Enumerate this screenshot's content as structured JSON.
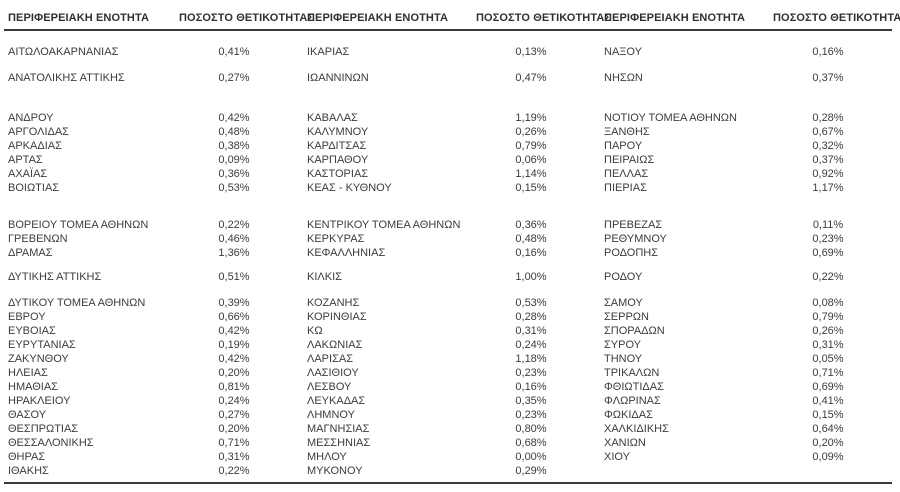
{
  "table": {
    "header": {
      "region": "ΠΕΡΙΦΕΡΕΙΑΚΗ ΕΝΟΤΗΤΑ",
      "rate": "ΠΟΣΟΣΤΟ ΘΕΤΙΚΟΤΗΤΑΣ"
    },
    "rows": [
      {
        "cells": [
          [
            "ΑΙΤΩΛΟΑΚΑΡΝΑΝΙΑΣ",
            "0,41%"
          ],
          [
            "ΙΚΑΡΙΑΣ",
            "0,13%"
          ],
          [
            "ΝΑΞΟΥ",
            "0,16%"
          ]
        ],
        "gap_after": 12
      },
      {
        "cells": [
          [
            "ΑΝΑΤΟΛΙΚΗΣ ΑΤΤΙΚΗΣ",
            "0,27%"
          ],
          [
            "ΙΩΑΝΝΙΝΩΝ",
            "0,47%"
          ],
          [
            "ΝΗΣΩΝ",
            "0,37%"
          ]
        ],
        "gap_after": 26
      },
      {
        "cells": [
          [
            "ΑΝΔΡΟΥ",
            "0,42%"
          ],
          [
            "ΚΑΒΑΛΑΣ",
            "1,19%"
          ],
          [
            "ΝΟΤΙΟΥ ΤΟΜΕΑ ΑΘΗΝΩΝ",
            "0,28%"
          ]
        ]
      },
      {
        "cells": [
          [
            "ΑΡΓΟΛΙΔΑΣ",
            "0,48%"
          ],
          [
            "ΚΑΛΥΜΝΟΥ",
            "0,26%"
          ],
          [
            "ΞΑΝΘΗΣ",
            "0,67%"
          ]
        ]
      },
      {
        "cells": [
          [
            "ΑΡΚΑΔΙΑΣ",
            "0,38%"
          ],
          [
            "ΚΑΡΔΙΤΣΑΣ",
            "0,79%"
          ],
          [
            "ΠΑΡΟΥ",
            "0,32%"
          ]
        ]
      },
      {
        "cells": [
          [
            "ΑΡΤΑΣ",
            "0,09%"
          ],
          [
            "ΚΑΡΠΑΘΟΥ",
            "0,06%"
          ],
          [
            "ΠΕΙΡΑΙΩΣ",
            "0,37%"
          ]
        ]
      },
      {
        "cells": [
          [
            "ΑΧΑΪΑΣ",
            "0,36%"
          ],
          [
            "ΚΑΣΤΟΡΙΑΣ",
            "1,14%"
          ],
          [
            "ΠΕΛΛΑΣ",
            "0,92%"
          ]
        ]
      },
      {
        "cells": [
          [
            "ΒΟΙΩΤΙΑΣ",
            "0,53%"
          ],
          [
            "ΚΕΑΣ - ΚΥΘΝΟΥ",
            "0,15%"
          ],
          [
            "ΠΙΕΡΙΑΣ",
            "1,17%"
          ]
        ],
        "gap_after": 23
      },
      {
        "cells": [
          [
            "ΒΟΡΕΙΟΥ ΤΟΜΕΑ ΑΘΗΝΩΝ",
            "0,22%"
          ],
          [
            "ΚΕΝΤΡΙΚΟΥ ΤΟΜΕΑ ΑΘΗΝΩΝ",
            "0,36%"
          ],
          [
            "ΠΡΕΒΕΖΑΣ",
            "0,11%"
          ]
        ]
      },
      {
        "cells": [
          [
            "ΓΡΕΒΕΝΩΝ",
            "0,46%"
          ],
          [
            "ΚΕΡΚΥΡΑΣ",
            "0,48%"
          ],
          [
            "ΡΕΘΥΜΝΟΥ",
            "0,23%"
          ]
        ]
      },
      {
        "cells": [
          [
            "ΔΡΑΜΑΣ",
            "1,36%"
          ],
          [
            "ΚΕΦΑΛΛΗΝΙΑΣ",
            "0,16%"
          ],
          [
            "ΡΟΔΟΠΗΣ",
            "0,69%"
          ]
        ],
        "gap_after": 10
      },
      {
        "cells": [
          [
            "ΔΥΤΙΚΗΣ ΑΤΤΙΚΗΣ",
            "0,51%"
          ],
          [
            "ΚΙΛΚΙΣ",
            "1,00%"
          ],
          [
            "ΡΟΔΟΥ",
            "0,22%"
          ]
        ],
        "gap_after": 12
      },
      {
        "cells": [
          [
            "ΔΥΤΙΚΟΥ ΤΟΜΕΑ ΑΘΗΝΩΝ",
            "0,39%"
          ],
          [
            "ΚΟΖΑΝΗΣ",
            "0,53%"
          ],
          [
            "ΣΑΜΟΥ",
            "0,08%"
          ]
        ]
      },
      {
        "cells": [
          [
            "ΕΒΡΟΥ",
            "0,66%"
          ],
          [
            "ΚΟΡΙΝΘΙΑΣ",
            "0,28%"
          ],
          [
            "ΣΕΡΡΩΝ",
            "0,79%"
          ]
        ]
      },
      {
        "cells": [
          [
            "ΕΥΒΟΙΑΣ",
            "0,42%"
          ],
          [
            "ΚΩ",
            "0,31%"
          ],
          [
            "ΣΠΟΡΑΔΩΝ",
            "0,26%"
          ]
        ]
      },
      {
        "cells": [
          [
            "ΕΥΡΥΤΑΝΙΑΣ",
            "0,19%"
          ],
          [
            "ΛΑΚΩΝΙΑΣ",
            "0,24%"
          ],
          [
            "ΣΥΡΟΥ",
            "0,31%"
          ]
        ]
      },
      {
        "cells": [
          [
            "ΖΑΚΥΝΘΟΥ",
            "0,42%"
          ],
          [
            "ΛΑΡΙΣΑΣ",
            "1,18%"
          ],
          [
            "ΤΗΝΟΥ",
            "0,05%"
          ]
        ]
      },
      {
        "cells": [
          [
            "ΗΛΕΙΑΣ",
            "0,20%"
          ],
          [
            "ΛΑΣΙΘΙΟΥ",
            "0,23%"
          ],
          [
            "ΤΡΙΚΑΛΩΝ",
            "0,71%"
          ]
        ]
      },
      {
        "cells": [
          [
            "ΗΜΑΘΙΑΣ",
            "0,81%"
          ],
          [
            "ΛΕΣΒΟΥ",
            "0,16%"
          ],
          [
            "ΦΘΙΩΤΙΔΑΣ",
            "0,69%"
          ]
        ]
      },
      {
        "cells": [
          [
            "ΗΡΑΚΛΕΙΟΥ",
            "0,24%"
          ],
          [
            "ΛΕΥΚΑΔΑΣ",
            "0,35%"
          ],
          [
            "ΦΛΩΡΙΝΑΣ",
            "0,41%"
          ]
        ]
      },
      {
        "cells": [
          [
            "ΘΑΣΟΥ",
            "0,27%"
          ],
          [
            "ΛΗΜΝΟΥ",
            "0,23%"
          ],
          [
            "ΦΩΚΙΔΑΣ",
            "0,15%"
          ]
        ]
      },
      {
        "cells": [
          [
            "ΘΕΣΠΡΩΤΙΑΣ",
            "0,20%"
          ],
          [
            "ΜΑΓΝΗΣΙΑΣ",
            "0,80%"
          ],
          [
            "ΧΑΛΚΙΔΙΚΗΣ",
            "0,64%"
          ]
        ]
      },
      {
        "cells": [
          [
            "ΘΕΣΣΑΛΟΝΙΚΗΣ",
            "0,71%"
          ],
          [
            "ΜΕΣΣΗΝΙΑΣ",
            "0,68%"
          ],
          [
            "ΧΑΝΙΩΝ",
            "0,20%"
          ]
        ]
      },
      {
        "cells": [
          [
            "ΘΗΡΑΣ",
            "0,31%"
          ],
          [
            "ΜΗΛΟΥ",
            "0,00%"
          ],
          [
            "ΧΙΟΥ",
            "0,09%"
          ]
        ]
      },
      {
        "cells": [
          [
            "ΙΘΑΚΗΣ",
            "0,22%"
          ],
          [
            "ΜΥΚΟΝΟΥ",
            "0,29%"
          ],
          [
            "",
            ""
          ]
        ]
      }
    ]
  },
  "colors": {
    "text": "#3c3c3c",
    "header_text": "#303030",
    "rule_line": "#3a3a3a",
    "background": "#ffffff"
  }
}
